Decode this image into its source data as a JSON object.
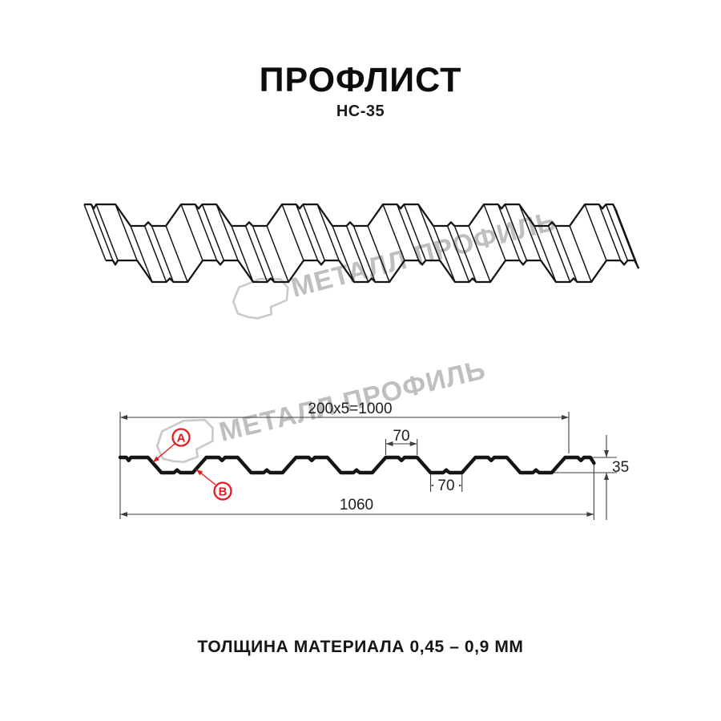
{
  "header": {
    "title": "ПРОФЛИСТ",
    "subtitle": "НС-35"
  },
  "watermark": {
    "text": "МЕТАЛЛ ПРОФИЛЬ"
  },
  "drawing": {
    "labels": {
      "a": "A",
      "b": "B"
    },
    "dimensions": {
      "pitch_total": "200x5=1000",
      "crest_width": "70",
      "valley_width": "70",
      "height": "35",
      "total_width": "1060"
    },
    "profile_mm": {
      "pitch": 200,
      "crest": 70,
      "valley": 70,
      "height": 35,
      "total_width": 1060,
      "periods": 5
    },
    "colors": {
      "line": "#141414",
      "dim_line": "#3d3d3d",
      "red": "#e8191e",
      "watermark_text": "#bfbfbf",
      "watermark_logo": "#cacaca"
    }
  },
  "footer": {
    "text": "ТОЛЩИНА МАТЕРИАЛА 0,45 – 0,9 ММ"
  }
}
